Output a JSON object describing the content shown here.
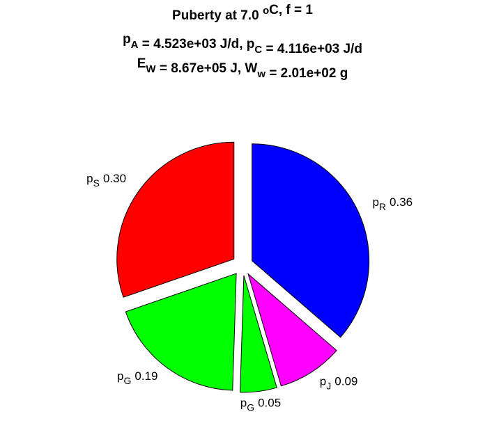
{
  "chart_data": {
    "type": "pie",
    "title_lines": [
      [
        {
          "text": "Puberty at 7.0 "
        },
        {
          "sup": "o"
        },
        {
          "text": "C, f = 1"
        }
      ],
      [
        {
          "text": "p"
        },
        {
          "sub": "A"
        },
        {
          "text": " = 4.523e+03 J/d,  p"
        },
        {
          "sub": "C"
        },
        {
          "text": " = 4.116e+03 J/d"
        }
      ],
      [
        {
          "text": "E"
        },
        {
          "sub": "W"
        },
        {
          "text": " = 8.67e+05 J, W"
        },
        {
          "sub": "w"
        },
        {
          "text": " = 2.01e+02 g"
        }
      ]
    ],
    "labels": [
      {
        "base": "p",
        "sub": "R"
      },
      {
        "base": "p",
        "sub": "J"
      },
      {
        "base": "p",
        "sub": "G"
      },
      {
        "base": "p",
        "sub": "G"
      },
      {
        "base": "p",
        "sub": "S"
      }
    ],
    "values": [
      0.36,
      0.09,
      0.05,
      0.19,
      0.3
    ],
    "value_labels": [
      "0.36",
      "0.09",
      "0.05",
      "0.19",
      "0.30"
    ],
    "colors": [
      "#0000ff",
      "#ff00ff",
      "#00ff00",
      "#00ff00",
      "#ff0000"
    ],
    "explode": true
  }
}
